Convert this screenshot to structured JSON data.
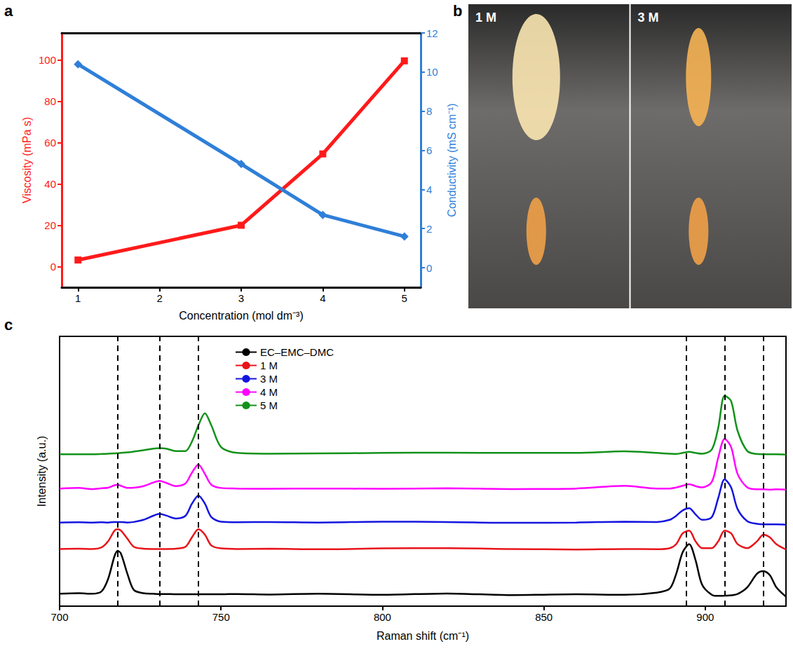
{
  "chart_data": [
    {
      "panel_label": "a",
      "type": "line",
      "x_label": "Concentration (mol dm⁻³)",
      "y_label": "Viscosity (mPa s)",
      "y2_label": "Conductivity (mS cm⁻¹)",
      "xlim": [
        0.8,
        5.2
      ],
      "xticks": [
        1,
        2,
        3,
        4,
        5
      ],
      "ylim": [
        -10,
        113
      ],
      "yticks": [
        0,
        20,
        40,
        60,
        80,
        100
      ],
      "y2lim": [
        -1,
        12
      ],
      "y2ticks": [
        0,
        2,
        4,
        6,
        8,
        10,
        12
      ],
      "grid": false,
      "x": [
        1,
        3,
        4,
        5
      ],
      "series": [
        {
          "color": "#ff1a1a",
          "marker": "square",
          "values": [
            3.2,
            20,
            54.5,
            99.5
          ]
        },
        {
          "color": "#2f7fd8",
          "marker": "diamond",
          "axis": "y2",
          "values": [
            10.4,
            5.3,
            2.7,
            1.6
          ]
        }
      ]
    },
    {
      "panel_label": "c",
      "type": "line",
      "x_label": "Raman shift (cm⁻¹)",
      "y_label": "Intensity (a.u.)",
      "xlim": [
        700,
        925
      ],
      "xticks": [
        700,
        750,
        800,
        850,
        900
      ],
      "ylim": [
        0,
        100
      ],
      "tick_labels": "x",
      "grid": false,
      "legend": "upper left",
      "vlines": [
        718,
        731,
        743,
        894,
        906,
        918
      ],
      "x": [
        700,
        706,
        710,
        713,
        715,
        717,
        718,
        719,
        721,
        723,
        726,
        729,
        731,
        733,
        736,
        739,
        741,
        743,
        745,
        747,
        750,
        755,
        765,
        780,
        800,
        820,
        840,
        860,
        875,
        885,
        889,
        891,
        893,
        895,
        897,
        899,
        902,
        904,
        906,
        908,
        910,
        913,
        916,
        918,
        920,
        922,
        925
      ],
      "series": [
        {
          "name": "EC–EMC–DMC",
          "color": "#000000",
          "values": [
            4.6,
            4.8,
            4.6,
            5.5,
            10,
            18.5,
            20.5,
            19.5,
            12,
            6,
            4.8,
            4.6,
            4.5,
            4.5,
            4.4,
            4.4,
            4.4,
            4.4,
            4.4,
            4.4,
            4.4,
            4.5,
            4.3,
            4.6,
            4.2,
            4.7,
            4.1,
            4.4,
            4.2,
            5,
            6.5,
            12,
            20,
            23,
            17,
            8,
            4.2,
            3.8,
            3.9,
            4,
            4.5,
            7,
            12,
            13,
            11.5,
            7,
            3.5
          ]
        },
        {
          "name": "1 M",
          "color": "#e8141b",
          "values": [
            21.2,
            21.3,
            21.2,
            21.8,
            24,
            28,
            28.5,
            28,
            25,
            22,
            21.3,
            21.2,
            21.2,
            21.2,
            21.3,
            22,
            25.5,
            28.5,
            26.5,
            22.5,
            21.4,
            21.2,
            21.3,
            21.1,
            21.4,
            21.5,
            21.2,
            21,
            21.2,
            21.1,
            21.5,
            23,
            27,
            28,
            24,
            21.5,
            21.5,
            24,
            28,
            27,
            23,
            21.5,
            24,
            26.5,
            25.5,
            23,
            21
          ]
        },
        {
          "name": "3 M",
          "color": "#1414e0",
          "values": [
            31,
            31.1,
            31,
            31.1,
            31,
            31.2,
            31.2,
            31.2,
            31,
            31.2,
            32,
            33.5,
            34.2,
            33.6,
            32.5,
            33.5,
            38,
            41,
            38,
            33,
            31.3,
            31.1,
            31.2,
            31,
            31.3,
            31.2,
            30.9,
            31,
            31.3,
            31.2,
            32,
            33.5,
            35.5,
            36.3,
            34,
            32,
            33,
            40,
            47,
            44,
            36,
            31.5,
            30.5,
            30.3,
            30.3,
            30.3,
            30.2
          ]
        },
        {
          "name": "4 M",
          "color": "#ff00ff",
          "values": [
            43.6,
            43.8,
            43.4,
            43.7,
            43.9,
            44.8,
            45,
            44.6,
            43.8,
            43.9,
            44.5,
            45.8,
            46.4,
            45.7,
            44.5,
            45.5,
            49.5,
            52.5,
            49,
            45,
            43.8,
            43.6,
            43.5,
            43.6,
            43.5,
            43.7,
            43.4,
            43.6,
            44.6,
            43.6,
            43.6,
            44,
            44.6,
            45.2,
            44.5,
            44,
            46,
            55,
            62,
            59,
            49,
            44,
            43.3,
            43.3,
            43.2,
            43.3,
            43.2
          ]
        },
        {
          "name": "5 M",
          "color": "#12921a",
          "values": [
            56.3,
            56.3,
            56.3,
            56.4,
            56.5,
            56.6,
            56.7,
            56.8,
            57,
            57.3,
            57.8,
            58.4,
            58.6,
            58.4,
            57.5,
            57.5,
            61,
            67,
            71.5,
            67,
            59,
            56.8,
            56.5,
            56.6,
            56.8,
            56.9,
            56.8,
            56.8,
            57.4,
            56.8,
            56.5,
            56.4,
            56.8,
            57.2,
            56.8,
            56.5,
            58,
            66,
            78,
            76,
            65,
            57.5,
            56.4,
            56.3,
            56.3,
            56.3,
            56.2
          ]
        }
      ]
    }
  ],
  "photos": {
    "panel_label": "b",
    "panels": [
      "1 M",
      "3 M"
    ]
  }
}
